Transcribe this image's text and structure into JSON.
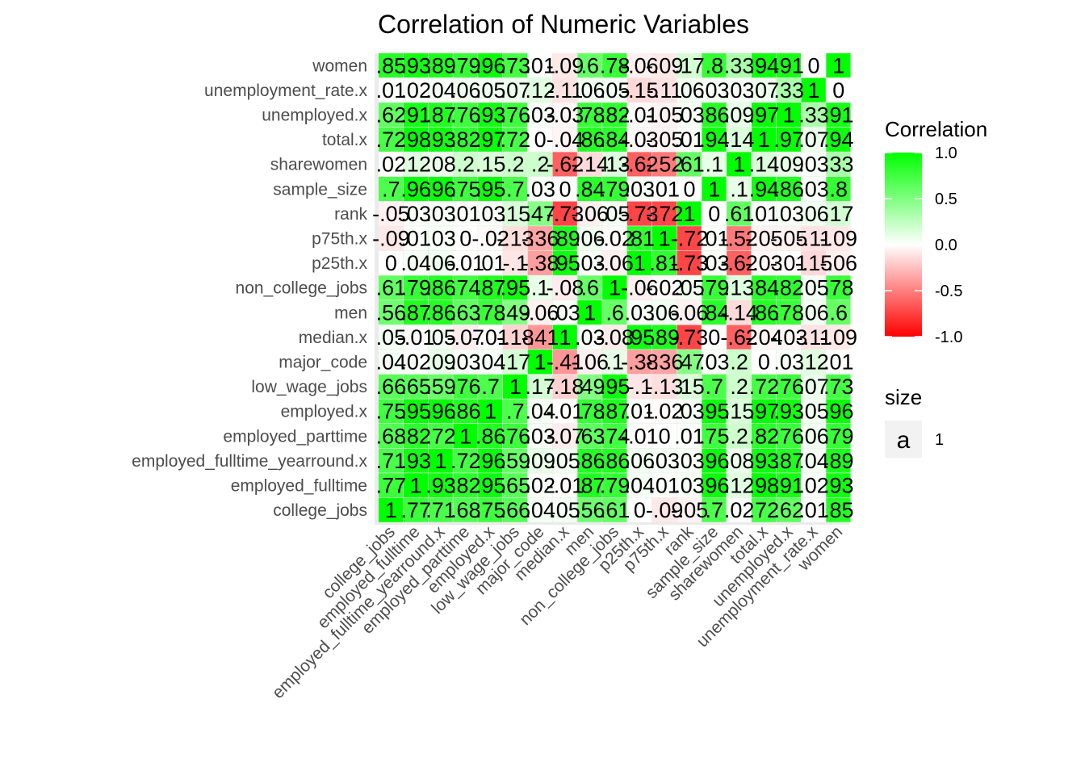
{
  "chart_data": {
    "type": "heatmap",
    "title": "Correlation of Numeric Variables",
    "variables": [
      "college_jobs",
      "employed_fulltime",
      "employed_fulltime_yearround.x",
      "employed_parttime",
      "employed.x",
      "low_wage_jobs",
      "major_code",
      "median.x",
      "men",
      "non_college_jobs",
      "p25th.x",
      "p75th.x",
      "rank",
      "sample_size",
      "sharewomen",
      "total.x",
      "unemployed.x",
      "unemployment_rate.x",
      "women"
    ],
    "x_order": [
      "college_jobs",
      "employed_fulltime",
      "employed_fulltime_yearround.x",
      "employed_parttime",
      "employed.x",
      "low_wage_jobs",
      "major_code",
      "median.x",
      "men",
      "non_college_jobs",
      "p25th.x",
      "p75th.x",
      "rank",
      "sample_size",
      "sharewomen",
      "total.x",
      "unemployed.x",
      "unemployment_rate.x",
      "women"
    ],
    "y_order_top_to_bottom": [
      "women",
      "unemployment_rate.x",
      "unemployed.x",
      "total.x",
      "sharewomen",
      "sample_size",
      "rank",
      "p75th.x",
      "p25th.x",
      "non_college_jobs",
      "men",
      "median.x",
      "major_code",
      "low_wage_jobs",
      "employed.x",
      "employed_parttime",
      "employed_fulltime_yearround.x",
      "employed_fulltime",
      "college_jobs"
    ],
    "matrix": [
      [
        1,
        0.77,
        0.71,
        0.68,
        0.75,
        0.66,
        0.04,
        0.05,
        0.56,
        0.61,
        0.0,
        -0.09,
        -0.05,
        0.7,
        0.02,
        0.72,
        0.62,
        0.01,
        0.85
      ],
      [
        0.77,
        1,
        0.93,
        0.82,
        0.95,
        0.65,
        0.02,
        -0.01,
        0.87,
        0.79,
        0.04,
        0.01,
        0.03,
        0.96,
        0.12,
        0.98,
        0.91,
        0.02,
        0.93
      ],
      [
        0.71,
        0.93,
        1,
        0.72,
        0.96,
        0.59,
        0.09,
        0.05,
        0.86,
        0.86,
        0.06,
        0.03,
        0.03,
        0.96,
        0.08,
        0.93,
        0.87,
        0.04,
        0.89
      ],
      [
        0.68,
        0.82,
        0.72,
        1,
        0.86,
        0.76,
        0.03,
        -0.07,
        0.63,
        0.74,
        -0.01,
        0.0,
        0.01,
        0.75,
        0.2,
        0.82,
        0.76,
        0.06,
        0.79
      ],
      [
        0.75,
        0.95,
        0.96,
        0.86,
        1,
        0.7,
        0.04,
        -0.01,
        0.78,
        0.87,
        0.01,
        -0.02,
        0.03,
        0.95,
        0.15,
        0.97,
        0.93,
        0.05,
        0.96
      ],
      [
        0.66,
        0.65,
        0.59,
        0.76,
        0.7,
        1,
        0.17,
        -0.18,
        0.49,
        0.95,
        -0.1,
        -0.13,
        0.15,
        0.7,
        0.2,
        0.72,
        0.76,
        0.07,
        0.73
      ],
      [
        0.04,
        0.02,
        0.09,
        0.03,
        0.04,
        0.17,
        1,
        -0.41,
        -0.06,
        0.1,
        -0.38,
        -0.36,
        0.47,
        0.03,
        0.2,
        0.0,
        0.03,
        0.12,
        0.01
      ],
      [
        0.05,
        -0.01,
        0.05,
        -0.07,
        -0.01,
        -0.18,
        -0.41,
        1,
        0.03,
        -0.08,
        0.95,
        0.89,
        -0.73,
        0.0,
        -0.62,
        -0.04,
        -0.03,
        -0.11,
        -0.09
      ],
      [
        0.56,
        0.87,
        0.86,
        0.63,
        0.78,
        0.49,
        -0.06,
        0.03,
        1,
        0.6,
        0.03,
        0.06,
        -0.06,
        0.84,
        -0.14,
        0.86,
        0.78,
        0.06,
        0.6
      ],
      [
        0.61,
        0.79,
        0.86,
        0.74,
        0.87,
        0.95,
        0.1,
        -0.08,
        0.6,
        1,
        -0.06,
        -0.02,
        0.05,
        0.79,
        0.13,
        0.84,
        0.82,
        0.05,
        0.78
      ],
      [
        0.0,
        0.04,
        0.06,
        -0.01,
        0.01,
        -0.1,
        -0.38,
        0.95,
        0.03,
        -0.06,
        1,
        0.81,
        -0.73,
        0.03,
        -0.62,
        -0.03,
        -0.01,
        -0.15,
        -0.06
      ],
      [
        -0.09,
        0.01,
        0.03,
        0.0,
        -0.02,
        -0.13,
        -0.36,
        0.89,
        0.06,
        -0.02,
        0.81,
        1,
        -0.72,
        0.01,
        -0.52,
        -0.05,
        -0.05,
        -0.11,
        -0.09
      ],
      [
        -0.05,
        0.03,
        0.03,
        0.01,
        0.03,
        0.15,
        0.47,
        -0.73,
        -0.06,
        0.05,
        -0.73,
        -0.72,
        1,
        0.0,
        0.61,
        0.01,
        0.03,
        0.06,
        0.17
      ],
      [
        0.7,
        0.96,
        0.96,
        0.75,
        0.95,
        0.7,
        0.03,
        0.0,
        0.84,
        0.79,
        0.03,
        0.01,
        0.0,
        1,
        0.1,
        0.94,
        0.86,
        0.03,
        0.8
      ],
      [
        0.02,
        0.12,
        0.08,
        0.2,
        0.15,
        0.2,
        0.2,
        -0.62,
        -0.14,
        0.13,
        -0.62,
        -0.52,
        0.61,
        0.1,
        1,
        0.14,
        0.09,
        0.03,
        0.33
      ],
      [
        0.72,
        0.98,
        0.93,
        0.82,
        0.97,
        0.72,
        0.0,
        -0.04,
        0.86,
        0.84,
        -0.03,
        -0.05,
        0.01,
        0.94,
        0.14,
        1,
        0.97,
        0.07,
        0.94
      ],
      [
        0.62,
        0.91,
        0.87,
        0.76,
        0.93,
        0.76,
        0.03,
        -0.03,
        0.78,
        0.82,
        -0.01,
        -0.05,
        0.03,
        0.86,
        0.09,
        0.97,
        1,
        0.33,
        0.91
      ],
      [
        0.01,
        0.02,
        0.04,
        0.06,
        0.05,
        0.07,
        0.12,
        -0.11,
        0.06,
        0.05,
        -0.15,
        -0.11,
        0.06,
        0.03,
        0.03,
        0.07,
        0.33,
        1,
        0.0
      ],
      [
        0.85,
        0.93,
        0.89,
        0.79,
        0.96,
        0.73,
        0.01,
        -0.09,
        0.6,
        0.78,
        -0.06,
        -0.09,
        0.17,
        0.8,
        0.33,
        0.94,
        0.91,
        0.0,
        1
      ]
    ],
    "legend": {
      "title": "Correlation",
      "breaks": [
        "1.0",
        "0.5",
        "0.0",
        "-0.5",
        "-1.0"
      ],
      "range": [
        -1,
        1
      ],
      "colors": {
        "low": "#ff0000",
        "mid": "#ffffff",
        "high": "#00ff00"
      }
    },
    "size_legend": {
      "title": "size",
      "key_glyph": "a",
      "label": "1"
    },
    "panel_background": "#ebebeb",
    "grid": true
  }
}
